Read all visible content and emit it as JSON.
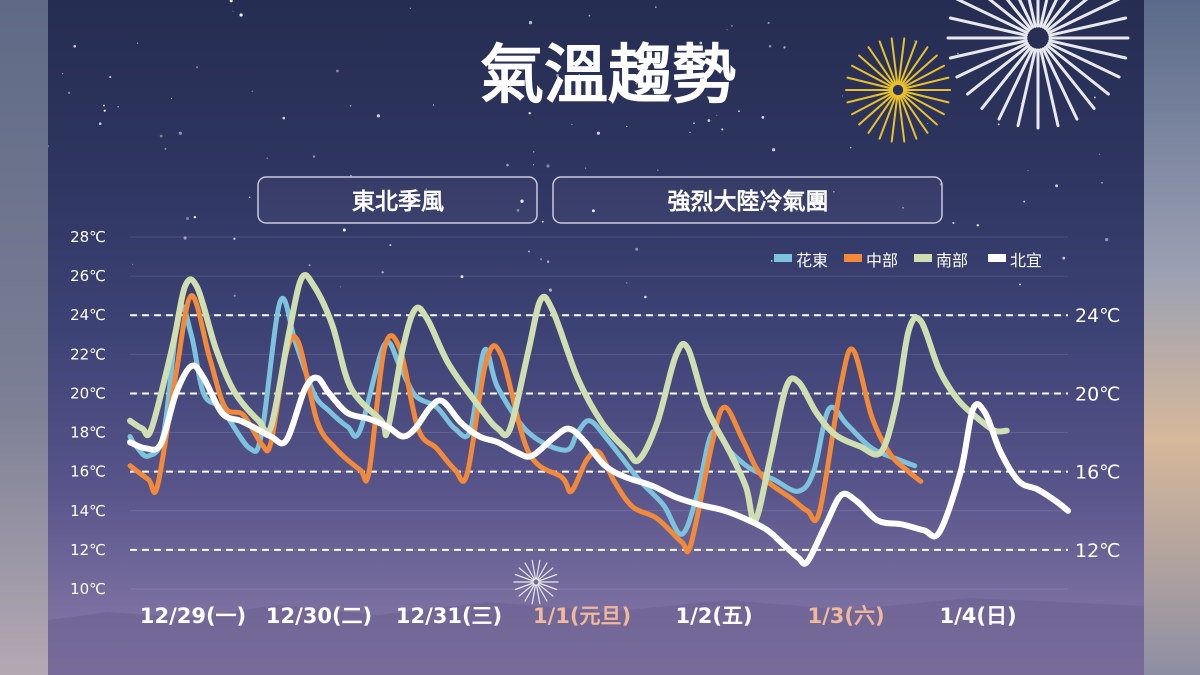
{
  "title": "氣溫趨勢",
  "phases": [
    "東北季風",
    "強烈大陸冷氣團"
  ],
  "chart_data": {
    "type": "line",
    "title": "氣溫趨勢",
    "y_left_ticks": [
      "28℃",
      "26℃",
      "24℃",
      "22℃",
      "20℃",
      "18℃",
      "16℃",
      "14℃",
      "12℃",
      "10℃"
    ],
    "y_right_ticks": [
      "24℃",
      "20℃",
      "16℃",
      "12℃"
    ],
    "reference_lines": [
      24,
      20,
      16,
      12
    ],
    "ylim": [
      10,
      28
    ],
    "x_labels": [
      {
        "text": "12/29(一)",
        "holiday": false
      },
      {
        "text": "12/30(二)",
        "holiday": false
      },
      {
        "text": "12/31(三)",
        "holiday": false
      },
      {
        "text": "1/1(元旦)",
        "holiday": true
      },
      {
        "text": "1/2(五)",
        "holiday": false
      },
      {
        "text": "1/3(六)",
        "holiday": true
      },
      {
        "text": "1/4(日)",
        "holiday": false
      }
    ],
    "legend_position": "top-right",
    "series": [
      {
        "name": "花東",
        "color": "#7ec3dd",
        "width": 5,
        "points": [
          [
            0,
            17.8
          ],
          [
            0.1,
            17.3
          ],
          [
            0.3,
            16.8
          ],
          [
            0.55,
            18
          ],
          [
            0.8,
            24.2
          ],
          [
            1.0,
            23
          ],
          [
            1.2,
            20
          ],
          [
            1.5,
            19.2
          ],
          [
            1.95,
            17.2
          ],
          [
            2.15,
            18
          ],
          [
            2.45,
            24.7
          ],
          [
            2.7,
            22.6
          ],
          [
            3.0,
            20
          ],
          [
            3.25,
            19.1
          ],
          [
            3.55,
            18.3
          ],
          [
            3.75,
            18.1
          ],
          [
            4.15,
            22.5
          ],
          [
            4.4,
            21.4
          ],
          [
            4.65,
            19.9
          ],
          [
            5.0,
            19.3
          ],
          [
            5.3,
            18.2
          ],
          [
            5.55,
            18.1
          ],
          [
            5.78,
            22.2
          ],
          [
            6.0,
            20.3
          ],
          [
            6.5,
            18
          ],
          [
            7.1,
            17.1
          ],
          [
            7.3,
            18
          ],
          [
            7.5,
            18.6
          ],
          [
            7.8,
            17.6
          ],
          [
            8.3,
            15.6
          ],
          [
            8.7,
            14.3
          ],
          [
            9.0,
            12.8
          ],
          [
            9.25,
            14.8
          ],
          [
            9.5,
            18
          ],
          [
            9.8,
            17
          ],
          [
            10.1,
            16.2
          ],
          [
            10.5,
            15.6
          ],
          [
            10.9,
            15
          ],
          [
            11.15,
            16
          ],
          [
            11.4,
            19.2
          ],
          [
            11.7,
            18.4
          ],
          [
            12.1,
            17.2
          ],
          [
            12.55,
            16.6
          ],
          [
            12.8,
            16.3
          ]
        ]
      },
      {
        "name": "中部",
        "color": "#f28a3a",
        "width": 5,
        "points": [
          [
            0,
            16.3
          ],
          [
            0.3,
            15.6
          ],
          [
            0.45,
            15.3
          ],
          [
            0.75,
            21
          ],
          [
            1.0,
            25
          ],
          [
            1.3,
            21.8
          ],
          [
            1.55,
            19.3
          ],
          [
            1.85,
            18.9
          ],
          [
            2.15,
            17.4
          ],
          [
            2.3,
            17.5
          ],
          [
            2.55,
            22.1
          ],
          [
            2.75,
            22.6
          ],
          [
            3.05,
            18.6
          ],
          [
            3.35,
            17.2
          ],
          [
            3.75,
            16.1
          ],
          [
            3.9,
            16
          ],
          [
            4.15,
            22.3
          ],
          [
            4.4,
            22.3
          ],
          [
            4.7,
            18.2
          ],
          [
            5.0,
            17.2
          ],
          [
            5.3,
            16.1
          ],
          [
            5.5,
            15.9
          ],
          [
            5.8,
            21.5
          ],
          [
            6.05,
            22
          ],
          [
            6.5,
            17
          ],
          [
            7.05,
            15.7
          ],
          [
            7.2,
            15
          ],
          [
            7.45,
            16.6
          ],
          [
            7.65,
            17
          ],
          [
            7.9,
            15.5
          ],
          [
            8.2,
            14.2
          ],
          [
            8.6,
            13.6
          ],
          [
            9.0,
            12.4
          ],
          [
            9.15,
            12.3
          ],
          [
            9.5,
            17.5
          ],
          [
            9.7,
            19.3
          ],
          [
            10.0,
            17.6
          ],
          [
            10.3,
            15.8
          ],
          [
            10.8,
            14.6
          ],
          [
            11.05,
            14
          ],
          [
            11.25,
            14
          ],
          [
            11.6,
            20.5
          ],
          [
            11.8,
            22.2
          ],
          [
            12.1,
            18.8
          ],
          [
            12.4,
            16.9
          ],
          [
            12.7,
            16
          ],
          [
            12.9,
            15.5
          ]
        ]
      },
      {
        "name": "南部",
        "color": "#d0dfb2",
        "width": 6,
        "points": [
          [
            0,
            18.6
          ],
          [
            0.2,
            18.2
          ],
          [
            0.35,
            18.2
          ],
          [
            0.7,
            22.5
          ],
          [
            0.9,
            25.5
          ],
          [
            1.1,
            25.4
          ],
          [
            1.4,
            22.3
          ],
          [
            1.7,
            20.1
          ],
          [
            2.1,
            18.6
          ],
          [
            2.3,
            18.3
          ],
          [
            2.6,
            23.2
          ],
          [
            2.8,
            25.9
          ],
          [
            3.0,
            25.5
          ],
          [
            3.3,
            23.5
          ],
          [
            3.6,
            20.3
          ],
          [
            4.1,
            18.6
          ],
          [
            4.2,
            18.1
          ],
          [
            4.45,
            22.3
          ],
          [
            4.65,
            24.3
          ],
          [
            4.85,
            23.8
          ],
          [
            5.2,
            21.5
          ],
          [
            5.7,
            19.3
          ],
          [
            6.0,
            18.2
          ],
          [
            6.2,
            18.2
          ],
          [
            6.5,
            22.2
          ],
          [
            6.7,
            24.8
          ],
          [
            6.9,
            24.2
          ],
          [
            7.3,
            20.8
          ],
          [
            7.7,
            18.5
          ],
          [
            8.1,
            17.1
          ],
          [
            8.3,
            16.6
          ],
          [
            8.6,
            18.5
          ],
          [
            8.9,
            21.9
          ],
          [
            9.1,
            22.3
          ],
          [
            9.4,
            19.3
          ],
          [
            9.8,
            16.9
          ],
          [
            10.05,
            15.2
          ],
          [
            10.2,
            13.5
          ],
          [
            10.45,
            16.8
          ],
          [
            10.7,
            20.3
          ],
          [
            10.9,
            20.6
          ],
          [
            11.2,
            19
          ],
          [
            11.5,
            17.9
          ],
          [
            11.9,
            17.3
          ],
          [
            12.25,
            17
          ],
          [
            12.5,
            19.5
          ],
          [
            12.7,
            23.2
          ],
          [
            12.9,
            23.7
          ],
          [
            13.2,
            21.2
          ],
          [
            13.5,
            19.7
          ],
          [
            13.8,
            18.8
          ],
          [
            14.1,
            18.1
          ],
          [
            14.3,
            18.1
          ]
        ]
      },
      {
        "name": "北宜",
        "color": "#ffffff",
        "width": 6,
        "points": [
          [
            0,
            17.5
          ],
          [
            0.25,
            17.2
          ],
          [
            0.5,
            17.4
          ],
          [
            0.75,
            20
          ],
          [
            1.0,
            21.4
          ],
          [
            1.2,
            20.8
          ],
          [
            1.5,
            19
          ],
          [
            1.8,
            18.6
          ],
          [
            2.0,
            18.3
          ],
          [
            2.3,
            17.8
          ],
          [
            2.55,
            17.6
          ],
          [
            2.85,
            20.2
          ],
          [
            3.05,
            20.8
          ],
          [
            3.25,
            20
          ],
          [
            3.55,
            19
          ],
          [
            3.9,
            18.7
          ],
          [
            4.2,
            18.3
          ],
          [
            4.45,
            17.8
          ],
          [
            4.65,
            18.2
          ],
          [
            4.9,
            19.3
          ],
          [
            5.1,
            19.6
          ],
          [
            5.4,
            18.5
          ],
          [
            5.7,
            17.8
          ],
          [
            6.0,
            17.5
          ],
          [
            6.3,
            17
          ],
          [
            6.55,
            16.8
          ],
          [
            6.9,
            17.7
          ],
          [
            7.15,
            18.2
          ],
          [
            7.4,
            17.6
          ],
          [
            7.75,
            16.3
          ],
          [
            8.1,
            15.7
          ],
          [
            8.5,
            15.3
          ],
          [
            8.9,
            14.7
          ],
          [
            9.3,
            14.3
          ],
          [
            9.7,
            14
          ],
          [
            10.1,
            13.5
          ],
          [
            10.4,
            13
          ],
          [
            10.65,
            12.3
          ],
          [
            10.9,
            11.6
          ],
          [
            11.05,
            11.4
          ],
          [
            11.35,
            13.3
          ],
          [
            11.6,
            14.8
          ],
          [
            11.85,
            14.5
          ],
          [
            12.2,
            13.5
          ],
          [
            12.6,
            13.3
          ],
          [
            12.95,
            13
          ],
          [
            13.2,
            12.9
          ],
          [
            13.55,
            16
          ],
          [
            13.75,
            19.2
          ],
          [
            13.95,
            19
          ],
          [
            14.2,
            17
          ],
          [
            14.5,
            15.5
          ],
          [
            14.8,
            15.1
          ],
          [
            15.1,
            14.5
          ],
          [
            15.3,
            14
          ]
        ]
      }
    ]
  }
}
